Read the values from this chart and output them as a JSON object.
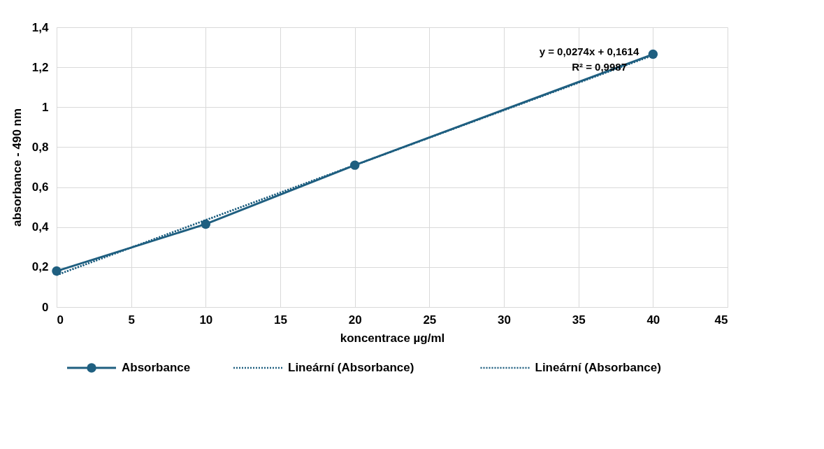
{
  "chart_data": {
    "type": "line",
    "xlabel": "koncentrace µg/ml",
    "ylabel": "absorbance - 490 nm",
    "xlim": [
      0,
      45
    ],
    "xticks": [
      0,
      5,
      10,
      15,
      20,
      25,
      30,
      35,
      40,
      45
    ],
    "ylim": [
      0,
      1.4
    ],
    "yticks": [
      {
        "value": 0,
        "label": "0"
      },
      {
        "value": 0.2,
        "label": "0,2"
      },
      {
        "value": 0.4,
        "label": "0,4"
      },
      {
        "value": 0.6,
        "label": "0,6"
      },
      {
        "value": 0.8,
        "label": "0,8"
      },
      {
        "value": 1,
        "label": "1"
      },
      {
        "value": 1.2,
        "label": "1,2"
      },
      {
        "value": 1.4,
        "label": "1,4"
      }
    ],
    "grid": true,
    "legend": "bottom",
    "series": [
      {
        "name": "Absorbance",
        "color": "#1f5f80",
        "marker": "circle",
        "line_style": "solid",
        "x": [
          0,
          10,
          20,
          40
        ],
        "values": [
          0.18,
          0.415,
          0.71,
          1.265
        ]
      },
      {
        "name": "Lineární (Absorbance)",
        "color": "#1f5f80",
        "marker": "none",
        "line_style": "dotted",
        "x": [
          0,
          40
        ],
        "values": [
          0.16,
          1.26
        ]
      },
      {
        "name": "Lineární (Absorbance)",
        "color": "#1f5f80",
        "marker": "none",
        "line_style": "dotted",
        "x": [
          0,
          40
        ],
        "values": [
          0.16,
          1.26
        ]
      }
    ],
    "annotations": [
      "y = 0,0274x + 0,1614",
      "R² = 0,9987"
    ]
  }
}
